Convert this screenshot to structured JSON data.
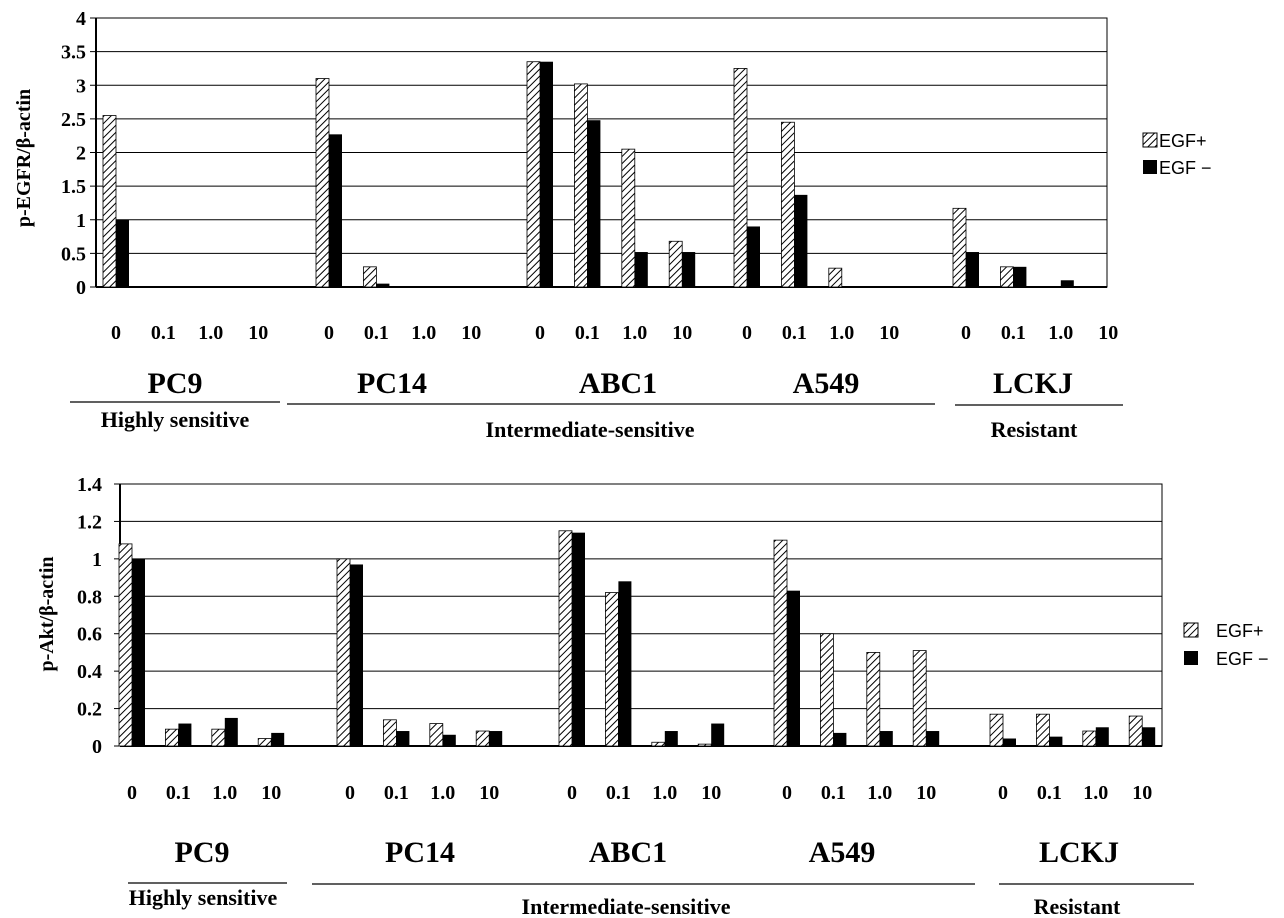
{
  "chart_data": [
    {
      "type": "bar",
      "ylabel": "p-EGFR/β-actin",
      "ylim": [
        0,
        4
      ],
      "yticks": [
        "4",
        "3.5",
        "3",
        "2.5",
        "2",
        "1.5",
        "1",
        "0.5",
        "0"
      ],
      "grid": true,
      "legend_position": "right",
      "cell_lines": [
        "PC9",
        "PC14",
        "ABC1",
        "A549",
        "LCKJ"
      ],
      "doses": [
        "0",
        "0.1",
        "1.0",
        "10"
      ],
      "groups": [
        "Highly sensitive",
        "Intermediate-sensitive",
        "Resistant"
      ],
      "series": [
        {
          "name": "EGF+",
          "pattern": "hatched",
          "values": [
            2.55,
            0,
            0,
            0,
            3.1,
            0.3,
            0,
            0,
            3.35,
            3.02,
            2.05,
            0.68,
            3.25,
            2.45,
            0.28,
            0,
            1.17,
            0.3,
            0,
            0
          ]
        },
        {
          "name": "EGF −",
          "pattern": "solid",
          "values": [
            1.0,
            0,
            0,
            0,
            2.27,
            0.05,
            0,
            0,
            3.35,
            2.48,
            0.52,
            0.52,
            0.9,
            1.37,
            0,
            0,
            0.52,
            0.3,
            0.1,
            0
          ]
        }
      ]
    },
    {
      "type": "bar",
      "ylabel": "p-Akt/β-actin",
      "ylim": [
        0,
        1.4
      ],
      "yticks": [
        "1.4",
        "1.2",
        "1",
        "0.8",
        "0.6",
        "0.4",
        "0.2",
        "0"
      ],
      "grid": true,
      "legend_position": "right",
      "cell_lines": [
        "PC9",
        "PC14",
        "ABC1",
        "A549",
        "LCKJ"
      ],
      "doses": [
        "0",
        "0.1",
        "1.0",
        "10"
      ],
      "groups": [
        "Highly sensitive",
        "Intermediate-sensitive",
        "Resistant"
      ],
      "series": [
        {
          "name": "EGF+",
          "pattern": "hatched",
          "values": [
            1.08,
            0.09,
            0.09,
            0.04,
            1.0,
            0.14,
            0.12,
            0.08,
            1.15,
            0.82,
            0.02,
            0.01,
            1.1,
            0.6,
            0.5,
            0.51,
            0.17,
            0.17,
            0.08,
            0.16
          ]
        },
        {
          "name": "EGF −",
          "pattern": "solid",
          "values": [
            1.0,
            0.12,
            0.15,
            0.07,
            0.97,
            0.08,
            0.06,
            0.08,
            1.14,
            0.88,
            0.08,
            0.12,
            0.83,
            0.07,
            0.08,
            0.08,
            0.04,
            0.05,
            0.1,
            0.1
          ]
        }
      ]
    }
  ],
  "colors": {
    "bar_solid": "#000000",
    "hatch": "#000000",
    "grid": "#000000",
    "background": "#ffffff"
  }
}
